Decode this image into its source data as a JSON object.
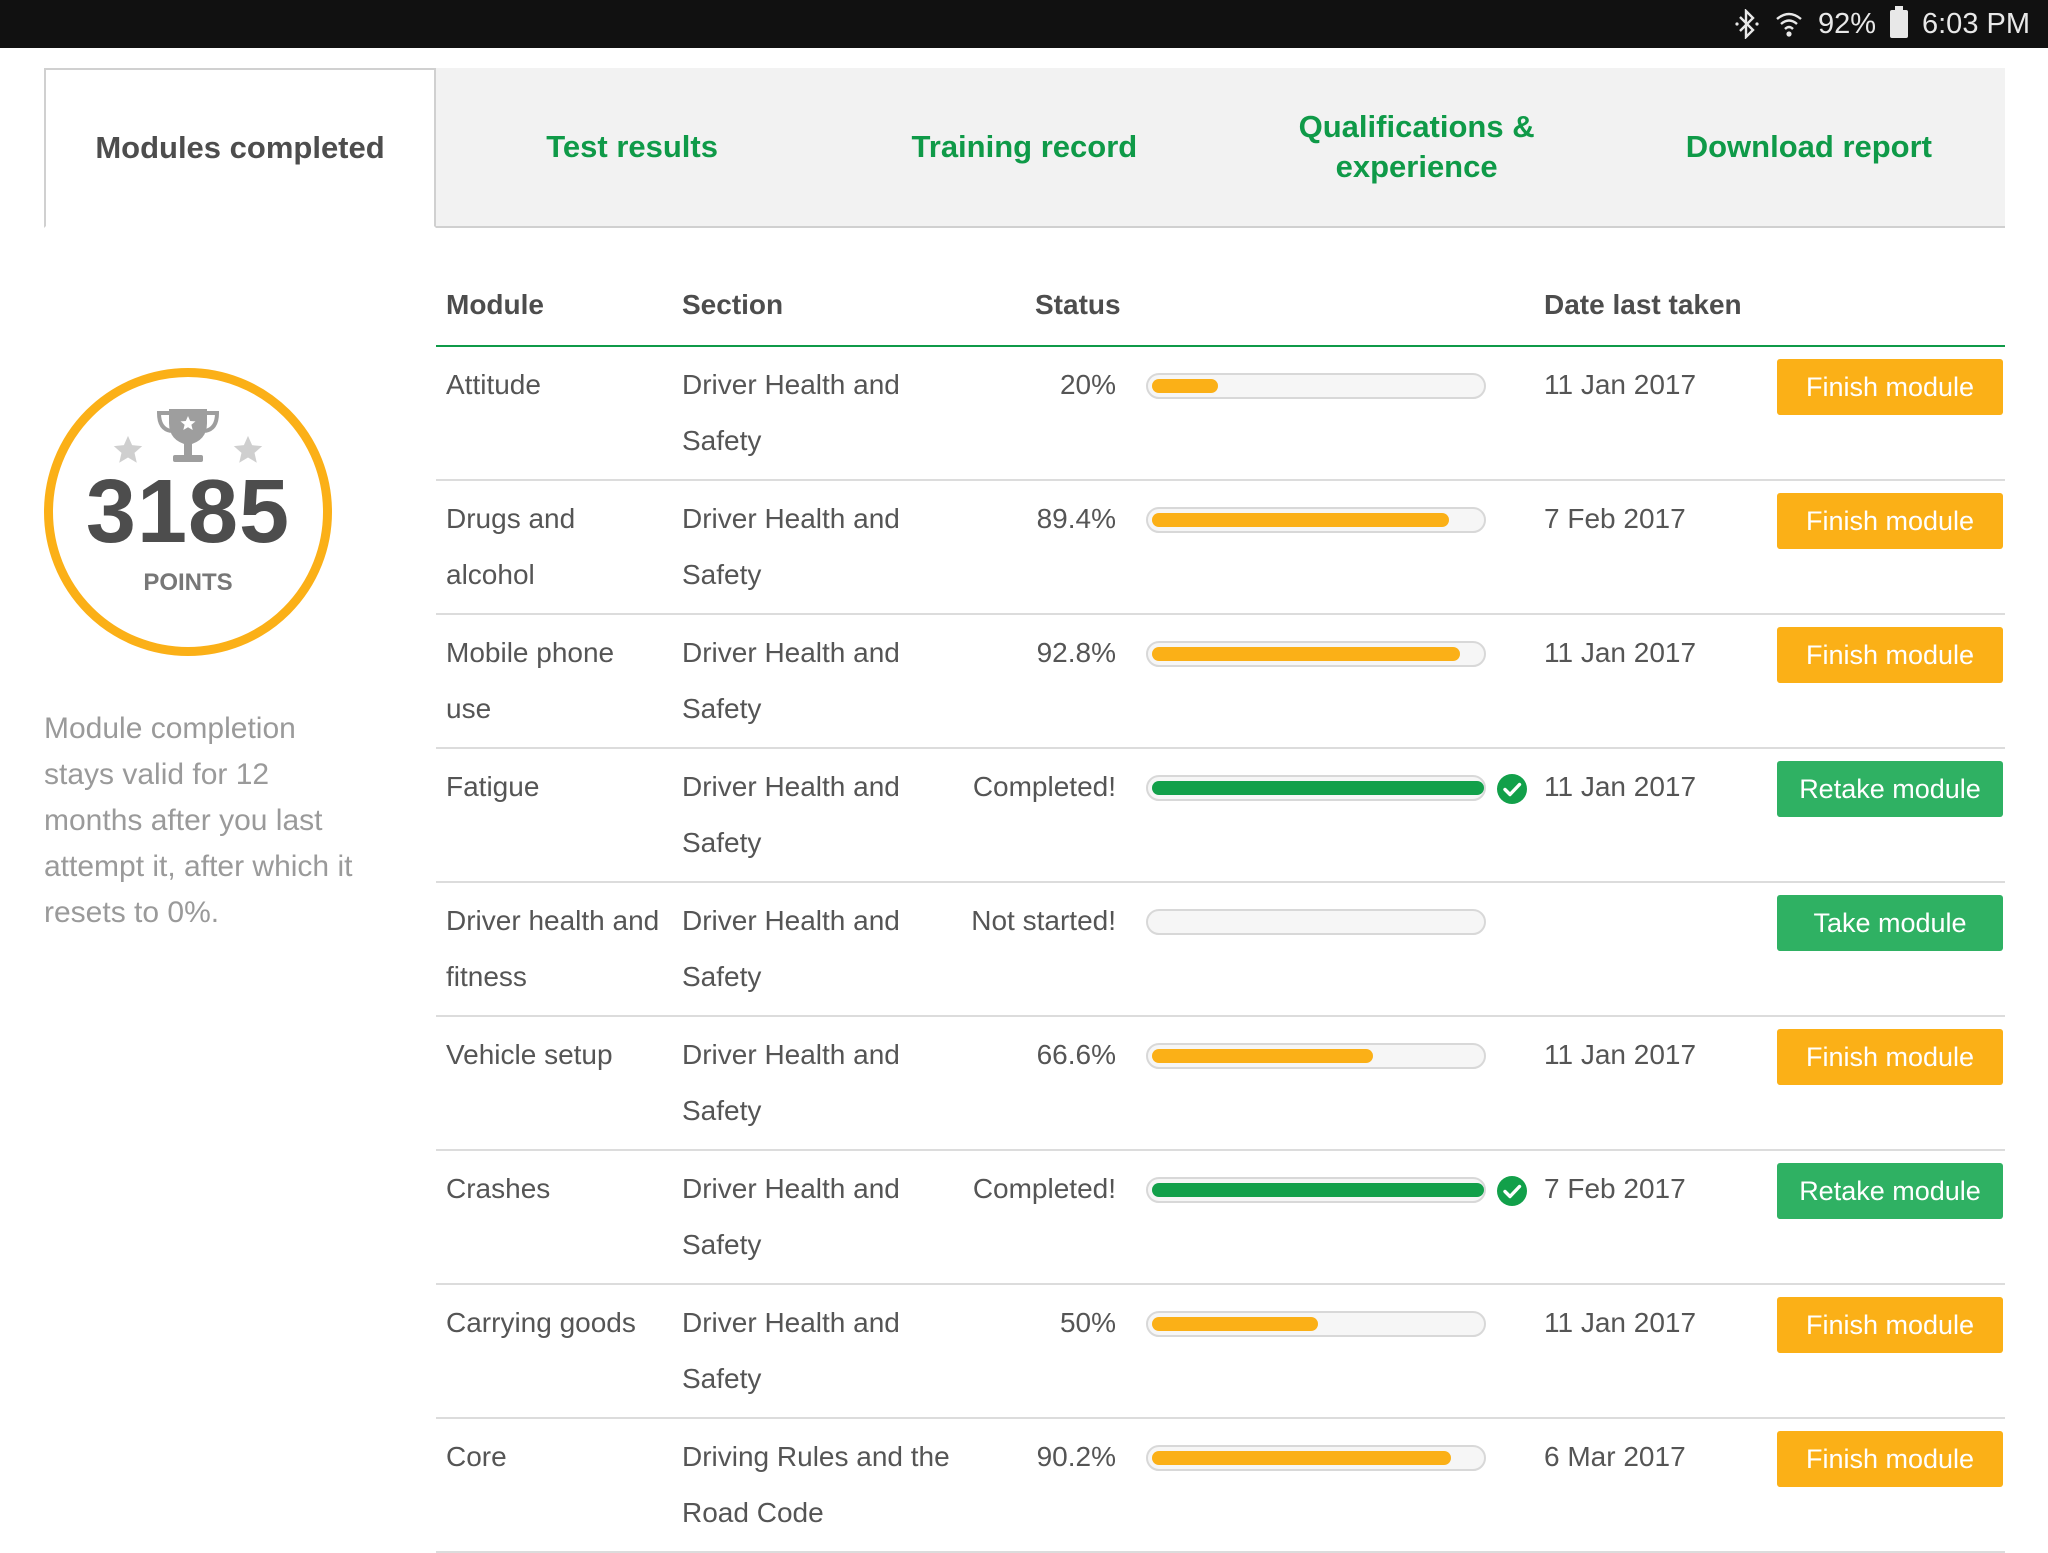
{
  "status_bar": {
    "battery": "92%",
    "time": "6:03 PM",
    "icons": [
      "bluetooth-icon",
      "wifi-icon",
      "battery-icon"
    ]
  },
  "tabs": [
    {
      "label": "Modules completed",
      "active": true
    },
    {
      "label": "Test results",
      "active": false
    },
    {
      "label": "Training record",
      "active": false
    },
    {
      "label": "Qualifications &\nexperience",
      "active": false
    },
    {
      "label": "Download report",
      "active": false
    }
  ],
  "points": {
    "value": "3185",
    "label": "POINTS",
    "note": "Module completion stays valid for 12 months after you last attempt it, after which it resets to 0%."
  },
  "table": {
    "headers": {
      "module": "Module",
      "section": "Section",
      "status": "Status",
      "date": "Date last taken"
    },
    "rows": [
      {
        "module": "Attitude",
        "section": "Driver Health and Safety",
        "status": "20%",
        "progress": 0.2,
        "completed": false,
        "date": "11 Jan 2017",
        "action": "Finish module",
        "action_color": "#fbb017"
      },
      {
        "module": "Drugs and alcohol",
        "section": "Driver Health and Safety",
        "status": "89.4%",
        "progress": 0.894,
        "completed": false,
        "date": "7 Feb 2017",
        "action": "Finish module",
        "action_color": "#fbb017"
      },
      {
        "module": "Mobile phone use",
        "section": "Driver Health and Safety",
        "status": "92.8%",
        "progress": 0.928,
        "completed": false,
        "date": "11 Jan 2017",
        "action": "Finish module",
        "action_color": "#fbb017"
      },
      {
        "module": "Fatigue",
        "section": "Driver Health and Safety",
        "status": "Completed!",
        "progress": 1.0,
        "completed": true,
        "date": "11 Jan 2017",
        "action": "Retake module",
        "action_color": "#2fb163"
      },
      {
        "module": "Driver health and fitness",
        "section": "Driver Health and Safety",
        "status": "Not started!",
        "progress": 0,
        "completed": false,
        "date": "",
        "action": "Take module",
        "action_color": "#2fb163"
      },
      {
        "module": "Vehicle setup",
        "section": "Driver Health and Safety",
        "status": "66.6%",
        "progress": 0.666,
        "completed": false,
        "date": "11 Jan 2017",
        "action": "Finish module",
        "action_color": "#fbb017"
      },
      {
        "module": "Crashes",
        "section": "Driver Health and Safety",
        "status": "Completed!",
        "progress": 1.0,
        "completed": true,
        "date": "7 Feb 2017",
        "action": "Retake module",
        "action_color": "#2fb163"
      },
      {
        "module": "Carrying goods",
        "section": "Driver Health and Safety",
        "status": "50%",
        "progress": 0.5,
        "completed": false,
        "date": "11 Jan 2017",
        "action": "Finish module",
        "action_color": "#fbb017"
      },
      {
        "module": "Core",
        "section": "Driving Rules and the Road Code",
        "status": "90.2%",
        "progress": 0.902,
        "completed": false,
        "date": "6 Mar 2017",
        "action": "Finish module",
        "action_color": "#fbb017"
      }
    ]
  },
  "colors": {
    "accent_green": "#0f9a48",
    "progress_orange": "#fbb017",
    "progress_green": "#12a04a",
    "button_green": "#2fb163"
  }
}
